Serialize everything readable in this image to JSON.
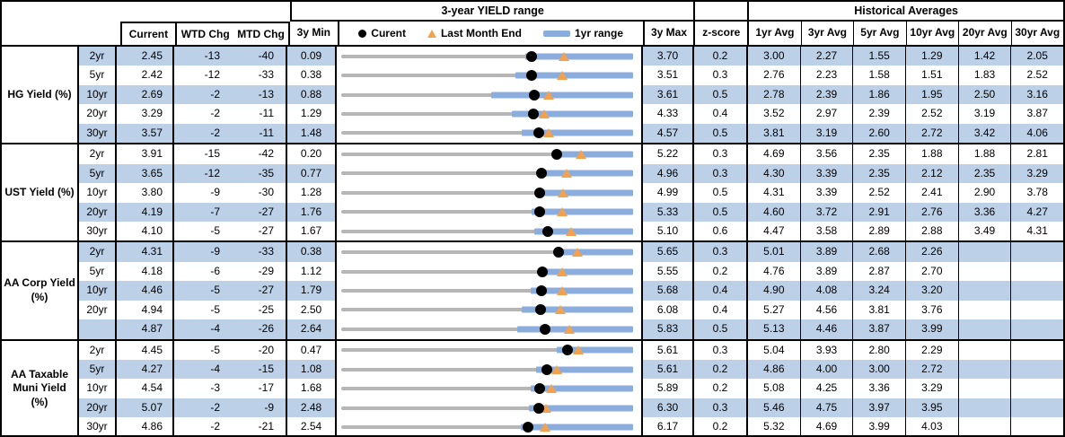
{
  "header": {
    "range_title": "3-year YIELD range",
    "historical_title": "Historical Averages",
    "col_current": "Current",
    "col_wtd_chg": "WTD Chg",
    "col_mtd_chg": "MTD Chg",
    "col_3y_min": "3y Min",
    "col_3y_max": "3y Max",
    "col_zscore": "z-score",
    "avg_cols": [
      "1yr Avg",
      "3yr Avg",
      "5yr Avg",
      "10yr Avg",
      "20yr Avg",
      "30yr Avg"
    ],
    "legend": {
      "current_label": "Curent",
      "last_month_end_label": "Last Month End",
      "range_1yr_label": "1yr range"
    }
  },
  "colors": {
    "row_shade": "#bcd0e8",
    "bar_blue": "#8badde",
    "track_gray": "#b6b6b6",
    "marker_orange": "#f2a24e",
    "dot_black": "#000000"
  },
  "chart_data": {
    "type": "range-dumbbell",
    "description": "Each row: gray track spans 3y Min to 3y Max; blue bar = 1yr range; black dot = current yield; orange triangle = last month end yield.",
    "sections": [
      {
        "group": "HG Yield (%)",
        "rows": [
          {
            "label": "2yr",
            "current": "2.45",
            "wtd": "-13",
            "mtd": "-40",
            "min": "0.09",
            "max": "3.70",
            "z": "0.2",
            "lme": 2.85,
            "bar": [
              2.37,
              3.7
            ],
            "avgs": [
              "3.00",
              "2.27",
              "1.55",
              "1.29",
              "1.42",
              "2.05"
            ]
          },
          {
            "label": "5yr",
            "current": "2.42",
            "wtd": "-12",
            "mtd": "-33",
            "min": "0.38",
            "max": "3.51",
            "z": "0.3",
            "lme": 2.75,
            "bar": [
              2.25,
              3.51
            ],
            "avgs": [
              "2.76",
              "2.23",
              "1.58",
              "1.51",
              "1.83",
              "2.52"
            ]
          },
          {
            "label": "10yr",
            "current": "2.69",
            "wtd": "-2",
            "mtd": "-13",
            "min": "0.88",
            "max": "3.61",
            "z": "0.5",
            "lme": 2.82,
            "bar": [
              2.28,
              3.61
            ],
            "avgs": [
              "2.78",
              "2.39",
              "1.86",
              "1.95",
              "2.50",
              "3.16"
            ]
          },
          {
            "label": "20yr",
            "current": "3.29",
            "wtd": "-2",
            "mtd": "-11",
            "min": "1.29",
            "max": "4.33",
            "z": "0.4",
            "lme": 3.4,
            "bar": [
              3.07,
              4.33
            ],
            "avgs": [
              "3.52",
              "2.97",
              "2.39",
              "2.52",
              "3.19",
              "3.87"
            ]
          },
          {
            "label": "30yr",
            "current": "3.57",
            "wtd": "-2",
            "mtd": "-11",
            "min": "1.48",
            "max": "4.57",
            "z": "0.5",
            "lme": 3.68,
            "bar": [
              3.39,
              4.57
            ],
            "avgs": [
              "3.81",
              "3.19",
              "2.60",
              "2.72",
              "3.42",
              "4.06"
            ]
          }
        ]
      },
      {
        "group": "UST Yield (%)",
        "rows": [
          {
            "label": "2yr",
            "current": "3.91",
            "wtd": "-15",
            "mtd": "-42",
            "min": "0.20",
            "max": "5.22",
            "z": "0.3",
            "lme": 4.33,
            "bar": [
              3.83,
              5.22
            ],
            "avgs": [
              "4.69",
              "3.56",
              "2.35",
              "1.88",
              "1.88",
              "2.81"
            ]
          },
          {
            "label": "5yr",
            "current": "3.65",
            "wtd": "-12",
            "mtd": "-35",
            "min": "0.77",
            "max": "4.96",
            "z": "0.3",
            "lme": 4.0,
            "bar": [
              3.61,
              4.96
            ],
            "avgs": [
              "4.30",
              "3.39",
              "2.35",
              "2.12",
              "2.35",
              "3.29"
            ]
          },
          {
            "label": "10yr",
            "current": "3.80",
            "wtd": "-9",
            "mtd": "-30",
            "min": "1.28",
            "max": "4.99",
            "z": "0.5",
            "lme": 4.1,
            "bar": [
              3.78,
              4.99
            ],
            "avgs": [
              "4.31",
              "3.39",
              "2.52",
              "2.41",
              "2.90",
              "3.78"
            ]
          },
          {
            "label": "20yr",
            "current": "4.19",
            "wtd": "-7",
            "mtd": "-27",
            "min": "1.76",
            "max": "5.33",
            "z": "0.5",
            "lme": 4.46,
            "bar": [
              4.09,
              5.33
            ],
            "avgs": [
              "4.60",
              "3.72",
              "2.91",
              "2.76",
              "3.36",
              "4.27"
            ]
          },
          {
            "label": "30yr",
            "current": "4.10",
            "wtd": "-5",
            "mtd": "-27",
            "min": "1.67",
            "max": "5.10",
            "z": "0.6",
            "lme": 4.37,
            "bar": [
              3.94,
              5.1
            ],
            "avgs": [
              "4.47",
              "3.58",
              "2.89",
              "2.88",
              "3.49",
              "4.31"
            ]
          }
        ]
      },
      {
        "group": "AA Corp Yield (%)",
        "rows": [
          {
            "label": "2yr",
            "current": "4.31",
            "wtd": "-9",
            "mtd": "-33",
            "min": "0.38",
            "max": "5.65",
            "z": "0.3",
            "lme": 4.64,
            "bar": [
              4.25,
              5.65
            ],
            "avgs": [
              "5.01",
              "3.89",
              "2.68",
              "2.26",
              "",
              ""
            ]
          },
          {
            "label": "5yr",
            "current": "4.18",
            "wtd": "-6",
            "mtd": "-29",
            "min": "1.12",
            "max": "5.55",
            "z": "0.2",
            "lme": 4.47,
            "bar": [
              4.11,
              5.55
            ],
            "avgs": [
              "4.76",
              "3.89",
              "2.87",
              "2.70",
              "",
              ""
            ]
          },
          {
            "label": "10yr",
            "current": "4.46",
            "wtd": "-5",
            "mtd": "-27",
            "min": "1.79",
            "max": "5.68",
            "z": "0.4",
            "lme": 4.73,
            "bar": [
              4.31,
              5.68
            ],
            "avgs": [
              "4.90",
              "4.08",
              "3.24",
              "3.20",
              "",
              ""
            ]
          },
          {
            "label": "20yr",
            "current": "4.94",
            "wtd": "-5",
            "mtd": "-25",
            "min": "2.50",
            "max": "6.08",
            "z": "0.4",
            "lme": 5.19,
            "bar": [
              4.71,
              6.08
            ],
            "avgs": [
              "5.27",
              "4.56",
              "3.81",
              "3.76",
              "",
              ""
            ]
          },
          {
            "label": "",
            "current": "4.87",
            "wtd": "-4",
            "mtd": "-26",
            "min": "2.64",
            "max": "5.83",
            "z": "0.5",
            "lme": 5.13,
            "bar": [
              4.56,
              5.83
            ],
            "avgs": [
              "5.13",
              "4.46",
              "3.87",
              "3.99",
              "",
              ""
            ]
          }
        ]
      },
      {
        "group": "AA Taxable Muni Yield (%)",
        "rows": [
          {
            "label": "2yr",
            "current": "4.45",
            "wtd": "-5",
            "mtd": "-20",
            "min": "0.47",
            "max": "5.61",
            "z": "0.3",
            "lme": 4.65,
            "bar": [
              4.26,
              5.61
            ],
            "avgs": [
              "5.04",
              "3.93",
              "2.80",
              "2.29",
              "",
              ""
            ]
          },
          {
            "label": "5yr",
            "current": "4.27",
            "wtd": "-4",
            "mtd": "-15",
            "min": "1.08",
            "max": "5.61",
            "z": "0.2",
            "lme": 4.42,
            "bar": [
              4.11,
              5.61
            ],
            "avgs": [
              "4.86",
              "4.00",
              "3.00",
              "2.72",
              "",
              ""
            ]
          },
          {
            "label": "10yr",
            "current": "4.54",
            "wtd": "-3",
            "mtd": "-17",
            "min": "1.68",
            "max": "5.89",
            "z": "0.2",
            "lme": 4.71,
            "bar": [
              4.41,
              5.89
            ],
            "avgs": [
              "5.08",
              "4.25",
              "3.36",
              "3.29",
              "",
              ""
            ]
          },
          {
            "label": "20yr",
            "current": "5.07",
            "wtd": "-2",
            "mtd": "-9",
            "min": "2.48",
            "max": "6.30",
            "z": "0.3",
            "lme": 5.16,
            "bar": [
              4.94,
              6.3
            ],
            "avgs": [
              "5.46",
              "4.75",
              "3.97",
              "3.95",
              "",
              ""
            ]
          },
          {
            "label": "30yr",
            "current": "4.86",
            "wtd": "-2",
            "mtd": "-21",
            "min": "2.54",
            "max": "6.17",
            "z": "0.2",
            "lme": 5.07,
            "bar": [
              4.77,
              6.17
            ],
            "avgs": [
              "5.32",
              "4.69",
              "3.99",
              "4.03",
              "",
              ""
            ]
          }
        ]
      }
    ]
  }
}
